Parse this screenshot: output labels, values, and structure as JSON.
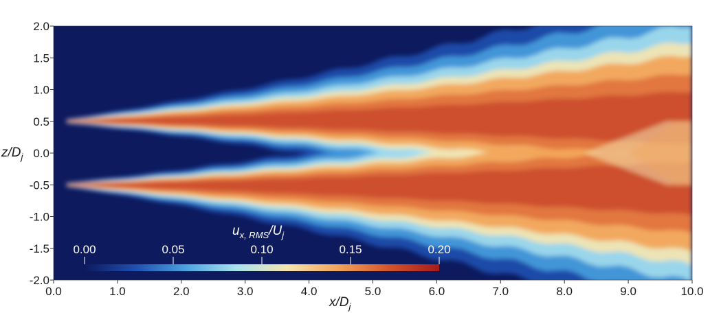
{
  "chart_data": {
    "type": "heatmap",
    "title": "",
    "xlabel": "x/D",
    "xlabel_sub": "j",
    "ylabel": "z/D",
    "ylabel_sub": "j",
    "xlim": [
      0.0,
      10.0
    ],
    "ylim": [
      -2.0,
      2.0
    ],
    "x_ticks": [
      "0.0",
      "1.0",
      "2.0",
      "3.0",
      "4.0",
      "5.0",
      "6.0",
      "7.0",
      "8.0",
      "9.0",
      "10.0"
    ],
    "y_ticks": [
      "2.0",
      "1.5",
      "1.0",
      "0.5",
      "0.0",
      "-0.5",
      "-1.0",
      "-1.5",
      "-2.0"
    ],
    "x_tick_values": [
      0,
      1,
      2,
      3,
      4,
      5,
      6,
      7,
      8,
      9,
      10
    ],
    "y_tick_values": [
      2.0,
      1.5,
      1.0,
      0.5,
      0.0,
      -0.5,
      -1.0,
      -1.5,
      -2.0
    ],
    "colorbar": {
      "label": "u",
      "label_sub": "x, RMS",
      "label_suffix": "/U",
      "label_suffix_sub": "j",
      "ticks": [
        "0.00",
        "0.05",
        "0.10",
        "0.15",
        "0.20"
      ],
      "tick_values": [
        0.0,
        0.05,
        0.1,
        0.15,
        0.2
      ],
      "range": [
        0.0,
        0.2
      ],
      "colormap": "turbo-like (dark blue → light blue → pale yellow → orange → dark red)",
      "colors": [
        "#0d1a5e",
        "#1f4fb0",
        "#4aa3e0",
        "#a9e2ee",
        "#f5e5b0",
        "#f2a55a",
        "#d4552c",
        "#a51b1b"
      ]
    },
    "field": {
      "description_values": "two shear layers emanating from z/Dj = ±0.5 at x/Dj ≈ 0.2, growing downstream and merging near x/Dj ≈ 9",
      "lip_x": 0.2,
      "lip_z": [
        0.5,
        -0.5
      ],
      "peak_value": 0.18,
      "merge_x": 9.0
    },
    "grid": false,
    "legend": "colorbar inside plot, lower-left"
  }
}
